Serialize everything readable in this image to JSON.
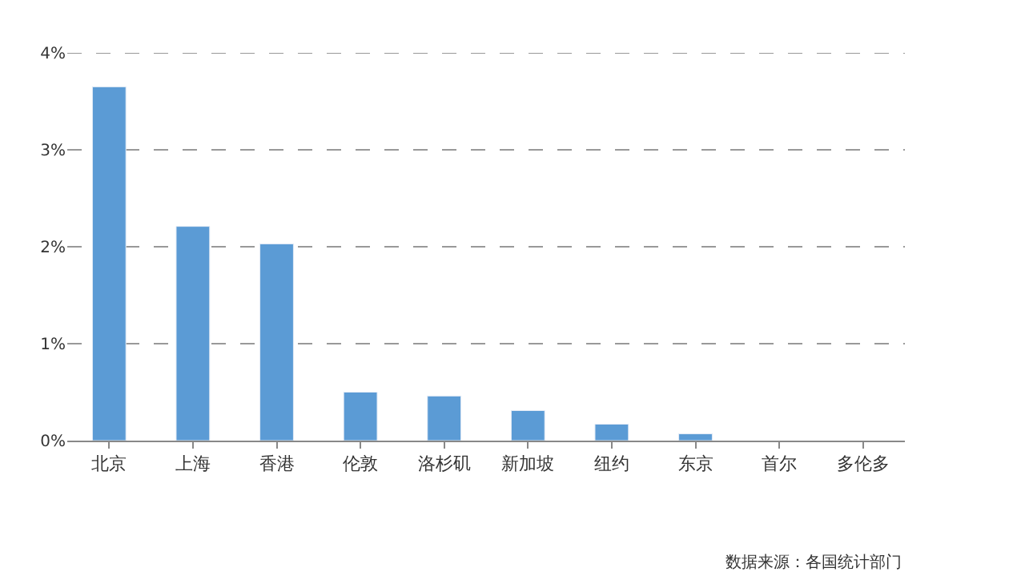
{
  "chart_data": {
    "type": "bar",
    "categories": [
      "北京",
      "上海",
      "香港",
      "伦敦",
      "洛杉矶",
      "新加坡",
      "纽约",
      "东京",
      "首尔",
      "多伦多"
    ],
    "values": [
      3.65,
      2.21,
      2.03,
      0.5,
      0.46,
      0.31,
      0.17,
      0.07,
      null,
      null
    ],
    "color": "#5b9bd5",
    "ylim": [
      0,
      4
    ],
    "yticks": [
      {
        "value": 0,
        "label": "0%"
      },
      {
        "value": 1,
        "label": "1%"
      },
      {
        "value": 2,
        "label": "2%"
      },
      {
        "value": 3,
        "label": "3%"
      },
      {
        "value": 4,
        "label": "4%"
      }
    ],
    "grid": "y",
    "annotations": [
      "数据来源：各国统计部门"
    ]
  }
}
